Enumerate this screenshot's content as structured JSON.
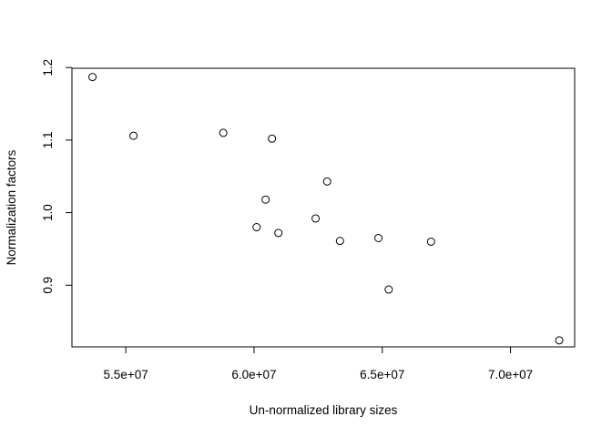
{
  "chart_data": {
    "type": "scatter",
    "title": "",
    "xlabel": "Un-normalized library sizes",
    "ylabel": "Normalization factors",
    "xlim": [
      52900000,
      72500000
    ],
    "ylim": [
      0.815,
      1.199
    ],
    "xticks": [
      55000000,
      60000000,
      65000000,
      70000000
    ],
    "xtick_labels": [
      "5.5e+07",
      "6.0e+07",
      "6.5e+07",
      "7.0e+07"
    ],
    "yticks": [
      0.9,
      1.0,
      1.1,
      1.2
    ],
    "ytick_labels": [
      "0.9",
      "1.0",
      "1.1",
      "1.2"
    ],
    "grid": false,
    "legend": "none",
    "marker": "open-circle",
    "points": [
      {
        "x": 53700000,
        "y": 1.187
      },
      {
        "x": 55300000,
        "y": 1.106
      },
      {
        "x": 58800000,
        "y": 1.11
      },
      {
        "x": 60700000,
        "y": 1.102
      },
      {
        "x": 62850000,
        "y": 1.043
      },
      {
        "x": 60450000,
        "y": 1.018
      },
      {
        "x": 60100000,
        "y": 0.98
      },
      {
        "x": 60950000,
        "y": 0.972
      },
      {
        "x": 62400000,
        "y": 0.992
      },
      {
        "x": 63350000,
        "y": 0.961
      },
      {
        "x": 64850000,
        "y": 0.965
      },
      {
        "x": 66900000,
        "y": 0.96
      },
      {
        "x": 65250000,
        "y": 0.894
      },
      {
        "x": 71900000,
        "y": 0.824
      }
    ]
  }
}
